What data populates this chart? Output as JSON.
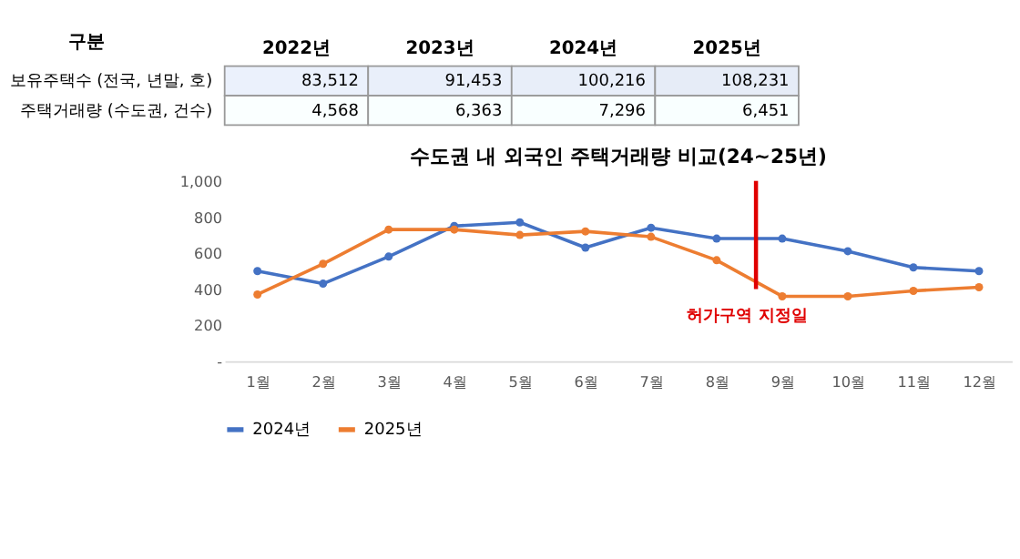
{
  "chart_data": [
    {
      "type": "heatmap",
      "ylabel": "구분",
      "categories": [
        "2022년",
        "2023년",
        "2024년",
        "2025년"
      ],
      "y_categories": [
        "보유주택수 (전국, 년말, 호)",
        "주택거래량 (수도권, 건수)"
      ],
      "cells": [
        [
          83512,
          91453,
          100216,
          108231
        ],
        [
          4568,
          6363,
          7296,
          6451
        ]
      ],
      "cell_labels": [
        [
          "83,512",
          "91,453",
          "100,216",
          "108,231"
        ],
        [
          "4,568",
          "6,363",
          "7,296",
          "6,451"
        ]
      ]
    },
    {
      "type": "line",
      "title": "수도권 내 외국인 주택거래량 비교(24~25년)",
      "x": [
        1,
        2,
        3,
        4,
        5,
        6,
        7,
        8,
        9,
        10,
        11,
        12
      ],
      "xlim": [
        0.5,
        12.5
      ],
      "xticks": [
        {
          "value": 1,
          "label": "1월"
        },
        {
          "value": 2,
          "label": "2월"
        },
        {
          "value": 3,
          "label": "3월"
        },
        {
          "value": 4,
          "label": "4월"
        },
        {
          "value": 5,
          "label": "5월"
        },
        {
          "value": 6,
          "label": "6월"
        },
        {
          "value": 7,
          "label": "7월"
        },
        {
          "value": 8,
          "label": "8월"
        },
        {
          "value": 9,
          "label": "9월"
        },
        {
          "value": 10,
          "label": "10월"
        },
        {
          "value": 11,
          "label": "11월"
        },
        {
          "value": 12,
          "label": "12월"
        }
      ],
      "ylim": [
        0,
        1000
      ],
      "yticks": [
        {
          "value": 0,
          "label": "-"
        },
        {
          "value": 200,
          "label": "200"
        },
        {
          "value": 400,
          "label": "400"
        },
        {
          "value": 600,
          "label": "600"
        },
        {
          "value": 800,
          "label": "800"
        },
        {
          "value": 1000,
          "label": "1,000"
        }
      ],
      "series": [
        {
          "name": "2024년",
          "color": "#4472c4",
          "values": [
            500,
            430,
            580,
            750,
            770,
            630,
            740,
            680,
            680,
            610,
            520,
            500
          ]
        },
        {
          "name": "2025년",
          "color": "#ed7d31",
          "values": [
            370,
            540,
            730,
            730,
            700,
            720,
            690,
            560,
            360,
            360,
            390,
            410
          ]
        }
      ],
      "ref_lines": [
        {
          "axis": "x",
          "value": 8.6,
          "label": "허가구역 지정일",
          "color": "#e00000"
        }
      ],
      "grid": false,
      "legend": "bottom",
      "marker": "circle",
      "line_style": "solid"
    }
  ]
}
